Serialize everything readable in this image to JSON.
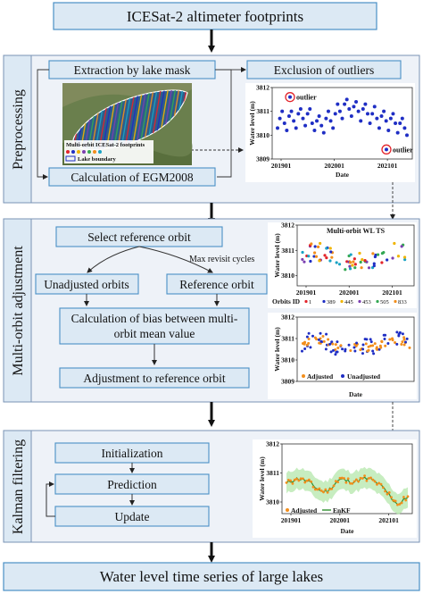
{
  "top_box": "ICESat-2 altimeter footprints",
  "bottom_box": "Water level time series of large lakes",
  "panel_labels": {
    "preprocessing": "Preprocessing",
    "multi_orbit": "Multi-orbit adjustment",
    "kalman": "Kalman filtering"
  },
  "pre": {
    "extraction": "Extraction by lake mask",
    "exclusion": "Exclusion of outliers",
    "egm": "Calculation of EGM2008",
    "map_legend_footprints": "Multi-orbit ICESat-2 footprints",
    "map_legend_boundary": "Lake boundary"
  },
  "mo": {
    "select": "Select reference orbit",
    "max_revisit": "Max revisit cycles",
    "unadjusted": "Unadjusted orbits",
    "reference": "Reference orbit",
    "bias_line1": "Calculation of bias between multi-",
    "bias_line2": "orbit mean value",
    "adjustment": "Adjustment to reference orbit"
  },
  "kf": {
    "init": "Initialization",
    "prediction": "Prediction",
    "update": "Update"
  },
  "colors": {
    "box_fill": "#dce9f4",
    "box_stroke": "#4a90c6",
    "panel_fill": "#eef2f8",
    "scatter_blue": "#1f2ec4",
    "outlier_red": "#e3242b",
    "adjusted_orange": "#f28e1c",
    "enkf_green": "#2f8f2f",
    "enkf_band": "#b9e8b0"
  },
  "orbit_colors": [
    "#e3242b",
    "#1f2ec4",
    "#f0b400",
    "#7b3fb0",
    "#34a853",
    "#f28e1c",
    "#1aa3c4"
  ],
  "chart_data": [
    {
      "type": "scatter",
      "ylabel": "Water level (m)",
      "xlabel": "Date",
      "x_ticks": [
        "201901",
        "202001",
        "202101"
      ],
      "y_ticks": [
        "3809",
        "3810",
        "3811",
        "3812"
      ],
      "ylim": [
        3809,
        3812
      ],
      "annotations": [
        "outlier",
        "outlier"
      ],
      "series": [
        {
          "values": [
            3810.3,
            3810.7,
            3811.0,
            3810.5,
            3810.2,
            3810.8,
            3811.0,
            3810.6,
            3810.3,
            3810.9,
            3811.1,
            3810.7,
            3810.4,
            3810.9,
            3811.1,
            3810.5,
            3810.2,
            3810.6,
            3810.8,
            3810.4,
            3810.1,
            3810.7,
            3811.0,
            3810.6,
            3810.3,
            3810.9,
            3811.3,
            3811.0,
            3810.7,
            3811.3,
            3811.5,
            3811.1,
            3810.8,
            3811.2,
            3811.4,
            3811.0,
            3810.6,
            3811.1,
            3811.3,
            3810.9,
            3810.5,
            3810.9,
            3811.2,
            3810.7,
            3810.3,
            3810.8,
            3811.0,
            3810.6,
            3810.2,
            3810.7,
            3810.9,
            3810.5,
            3810.1,
            3810.5,
            3810.7,
            3810.3,
            3810.0
          ]
        }
      ],
      "outliers": [
        {
          "x": "201902",
          "value": 3811.6
        },
        {
          "x": "202103",
          "value": 3809.4
        }
      ]
    },
    {
      "type": "scatter",
      "title": "Multi-orbit WL TS",
      "ylabel": "Water level (m)",
      "x_ticks": [
        "201901",
        "202001",
        "202101"
      ],
      "y_ticks": [
        "3810",
        "3811",
        "3812"
      ],
      "ylim": [
        3809.6,
        3812
      ],
      "legend_title": "Orbits ID",
      "legend": [
        "1",
        "389",
        "445",
        "453",
        "505",
        "833"
      ]
    },
    {
      "type": "scatter",
      "ylabel": "Water level (m)",
      "xlabel": "Date",
      "y_ticks": [
        "3809",
        "3810",
        "3811",
        "3812"
      ],
      "ylim": [
        3809,
        3812
      ],
      "legend": [
        "Adjusted",
        "Unadjusted"
      ]
    },
    {
      "type": "line",
      "ylabel": "Water level (m)",
      "xlabel": "Date",
      "x_ticks": [
        "201901",
        "202001",
        "202101"
      ],
      "y_ticks": [
        "3810",
        "3811",
        "3812"
      ],
      "ylim": [
        3809.6,
        3812
      ],
      "legend": [
        "Adjusted",
        "EnKF"
      ]
    }
  ]
}
